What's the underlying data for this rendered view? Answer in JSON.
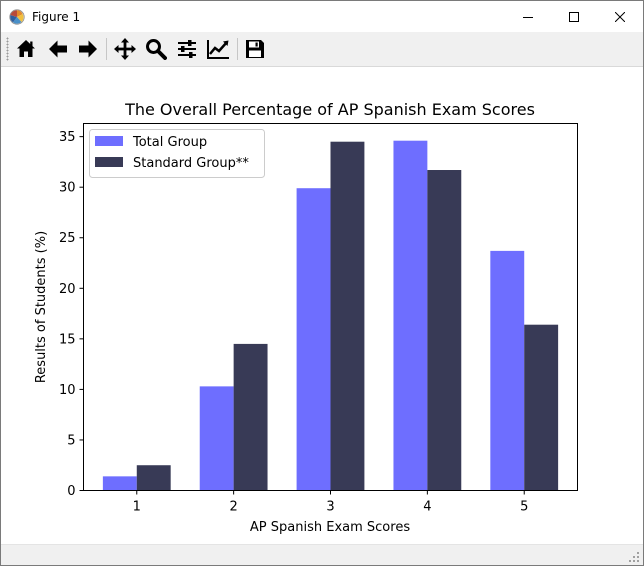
{
  "window": {
    "title": "Figure 1",
    "app_icon": "matplotlib-logo-icon",
    "controls": [
      "minimize-icon",
      "maximize-icon",
      "close-icon"
    ]
  },
  "toolbar": {
    "buttons": [
      {
        "name": "home",
        "icon": "home-icon"
      },
      {
        "name": "back",
        "icon": "arrow-left-icon"
      },
      {
        "name": "forward",
        "icon": "arrow-right-icon"
      },
      {
        "name": "pan",
        "icon": "move-icon"
      },
      {
        "name": "zoom",
        "icon": "magnifier-icon"
      },
      {
        "name": "subplots",
        "icon": "sliders-icon"
      },
      {
        "name": "edit-axes",
        "icon": "chart-line-icon"
      },
      {
        "name": "save",
        "icon": "floppy-icon"
      }
    ]
  },
  "colors": {
    "total_group": "#6e6eff",
    "standard_group": "#383a56"
  },
  "chart_data": {
    "type": "bar",
    "title": "The Overall Percentage of AP Spanish Exam Scores",
    "xlabel": "AP Spanish Exam Scores",
    "ylabel": "Results of Students (%)",
    "categories": [
      "1",
      "2",
      "3",
      "4",
      "5"
    ],
    "series": [
      {
        "name": "Total Group",
        "values": [
          1.4,
          10.3,
          29.9,
          34.6,
          23.7
        ]
      },
      {
        "name": "Standard Group**",
        "values": [
          2.5,
          14.5,
          34.5,
          31.7,
          16.4
        ]
      }
    ],
    "ylim": [
      0,
      36.3
    ],
    "yticks": [
      0,
      5,
      10,
      15,
      20,
      25,
      30,
      35
    ],
    "grid": false,
    "legend": "top-left"
  }
}
